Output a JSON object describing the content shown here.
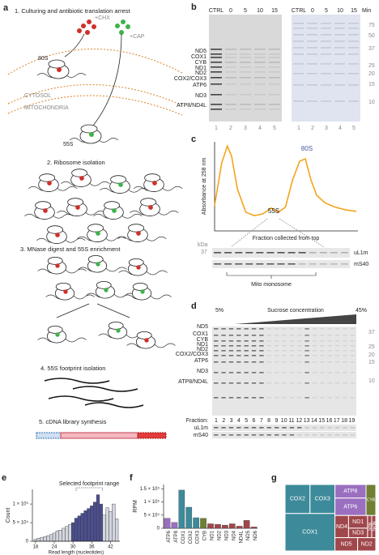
{
  "panel_labels": [
    "a",
    "b",
    "c",
    "d",
    "e",
    "f",
    "g"
  ],
  "panel_a": {
    "steps": [
      "1. Culturing and antibiotic translation arrest",
      "2. Ribosome isolation",
      "3. MNase digest and 55S enrichment",
      "4. 55S footprint isolation",
      "5. cDNA library synthesis"
    ],
    "labels": [
      "+CHX",
      "+CAP",
      "80S",
      "CYTOSOL",
      "MITOCHONDRIA",
      "55S"
    ]
  },
  "panel_b": {
    "lanes": [
      "CTRL",
      "0",
      "5",
      "10",
      "15"
    ],
    "time_unit": "Min",
    "bands": [
      "ND5",
      "COX1",
      "CYB",
      "ND1",
      "ND2",
      "COX2/COX3",
      "ATP6",
      "ND3",
      "ATP8/ND4L"
    ],
    "lane_numbers": [
      "1",
      "2",
      "3",
      "4",
      "5"
    ],
    "marker_kda": [
      "75",
      "50",
      "37",
      "25",
      "20",
      "15",
      "10"
    ]
  },
  "panel_c": {
    "kda_label": "kDa",
    "marker": "37",
    "blots": [
      "uL1m",
      "mS40"
    ],
    "bracket": "Mito monosome"
  },
  "panel_d": {
    "gradient_start": "5%",
    "gradient_label": "Sucrose concentration",
    "gradient_end": "45%",
    "bands": [
      "ND5",
      "COX1",
      "CYB",
      "ND1",
      "ND2",
      "COX2/COX3",
      "ATP6",
      "ND3",
      "ATP8/ND4L"
    ],
    "marker_kda": [
      "37",
      "25",
      "20",
      "15",
      "10"
    ],
    "fraction_label": "Fraction:",
    "fractions": [
      "1",
      "2",
      "3",
      "4",
      "5",
      "6",
      "7",
      "8",
      "9",
      "10",
      "11",
      "12",
      "13",
      "14",
      "15",
      "16",
      "17",
      "18",
      "19"
    ],
    "blots": [
      "uL1m",
      "mS40"
    ]
  },
  "chart_data": [
    {
      "type": "line",
      "y_label": "Absorbance at 258 nm",
      "x_label": "Fraction collected from top",
      "annotations": [
        "80S",
        "55S"
      ],
      "x": [
        0,
        0.05,
        0.09,
        0.12,
        0.16,
        0.22,
        0.28,
        0.34,
        0.4,
        0.45,
        0.5,
        0.55,
        0.6,
        0.64,
        0.68,
        0.72,
        0.78,
        0.85,
        0.92,
        1.0
      ],
      "values": [
        0.3,
        0.8,
        1.0,
        0.88,
        0.5,
        0.22,
        0.18,
        0.2,
        0.27,
        0.22,
        0.28,
        0.6,
        0.82,
        0.85,
        0.6,
        0.42,
        0.33,
        0.28,
        0.25,
        0.23
      ],
      "xlim": [
        0,
        1
      ],
      "ylim": [
        0,
        1.05
      ],
      "color": "#f2a51a"
    },
    {
      "type": "histogram",
      "title": "Selected footprint range",
      "x_label": "Read length (nucleotides)",
      "y_label": "Count",
      "bins": [
        17.5,
        18.5,
        19.5,
        20.5,
        21.5,
        22.5,
        23.5,
        24.5,
        25.5,
        26.5,
        27.5,
        28.5,
        29.5,
        30.5,
        31.5,
        32.5,
        33.5,
        34.5,
        35.5,
        36.5,
        37.5,
        38.5,
        39.5,
        40.5,
        41.5,
        42.5,
        43.5,
        44.5
      ],
      "values": [
        5000,
        8000,
        10000,
        12000,
        15000,
        18000,
        22000,
        28000,
        30000,
        35000,
        40000,
        45000,
        50000,
        62000,
        68000,
        75000,
        82000,
        88000,
        95000,
        105000,
        125000,
        100000,
        70000,
        90000,
        80000,
        100000,
        60000
      ],
      "xlim": [
        17,
        45
      ],
      "ylim": [
        0,
        135000
      ],
      "xticks": [
        18,
        24,
        30,
        36,
        42
      ],
      "yticks": [
        0,
        {
          "value": 50000,
          "label": "5 × 10⁴"
        },
        {
          "value": 100000,
          "label": "1 × 10⁵"
        }
      ],
      "color": "#d3d6df",
      "highlight_color": "#4b4f8e",
      "highlight_range": [
        29.5,
        39.5
      ]
    },
    {
      "type": "bar",
      "y_label": "RPM",
      "categories": [
        "ATP6",
        "ATP8",
        "COX1",
        "COX2",
        "COX3",
        "CYB",
        "ND1",
        "ND2",
        "ND3",
        "ND4",
        "ND4L",
        "ND5",
        "ND6"
      ],
      "values": [
        38000,
        22000,
        145000,
        80000,
        40000,
        38000,
        17000,
        15000,
        12000,
        17000,
        8000,
        30000,
        5000
      ],
      "colors": [
        "#9b6fc0",
        "#9b6fc0",
        "#3d8a9a",
        "#3d8a9a",
        "#3d8a9a",
        "#6f7f33",
        "#a0474b",
        "#a0474b",
        "#a0474b",
        "#a0474b",
        "#a0474b",
        "#a0474b",
        "#a0474b"
      ],
      "ylim": [
        0,
        160000
      ],
      "yticks": [
        0,
        {
          "value": 50000,
          "label": "5 × 10⁴"
        },
        {
          "value": 100000,
          "label": "1 × 10⁵"
        },
        {
          "value": 150000,
          "label": "1.5 × 10⁵"
        }
      ]
    },
    {
      "type": "treemap",
      "categories": [
        "COX2",
        "COX3",
        "COX1",
        "ATP8",
        "ATP6",
        "CYB",
        "ND4",
        "ND1",
        "ND6",
        "ND4L",
        "ND3",
        "ND5",
        "ND2"
      ],
      "values": [
        12,
        12,
        31,
        7,
        9,
        5,
        5,
        4,
        1.5,
        1.5,
        3,
        5,
        4
      ],
      "colors": [
        "#3d8a9a",
        "#3d8a9a",
        "#3d8a9a",
        "#9b6fc0",
        "#9b6fc0",
        "#6f7f33",
        "#a0474b",
        "#a0474b",
        "#a0474b",
        "#a0474b",
        "#a0474b",
        "#a0474b",
        "#a0474b"
      ]
    }
  ]
}
